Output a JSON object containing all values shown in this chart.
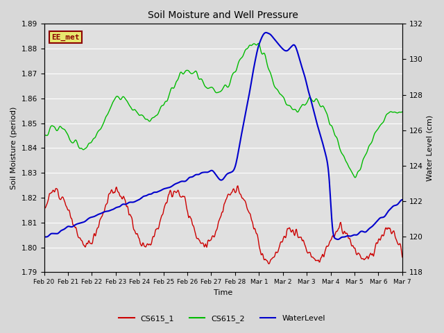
{
  "title": "Soil Moisture and Well Pressure",
  "xlabel": "Time",
  "ylabel_left": "Soil Moisture (period)",
  "ylabel_right": "Water Level (cm)",
  "ylim_left": [
    1.79,
    1.89
  ],
  "ylim_right": [
    118,
    132
  ],
  "yticks_left": [
    1.79,
    1.8,
    1.81,
    1.82,
    1.83,
    1.84,
    1.85,
    1.86,
    1.87,
    1.88,
    1.89
  ],
  "yticks_right": [
    118,
    120,
    122,
    124,
    126,
    128,
    130,
    132
  ],
  "plot_bg_color": "#e0e0e0",
  "fig_bg_color": "#d8d8d8",
  "annotation_text": "EE_met",
  "annotation_color": "#8b0000",
  "annotation_bg": "#e8e870",
  "legend_entries": [
    "CS615_1",
    "CS615_2",
    "WaterLevel"
  ],
  "legend_colors": [
    "#cc0000",
    "#00bb00",
    "#0000cc"
  ],
  "cs615_1_color": "#cc0000",
  "cs615_2_color": "#00bb00",
  "water_color": "#0000cc",
  "grid_color": "#ffffff",
  "n_points": 600
}
